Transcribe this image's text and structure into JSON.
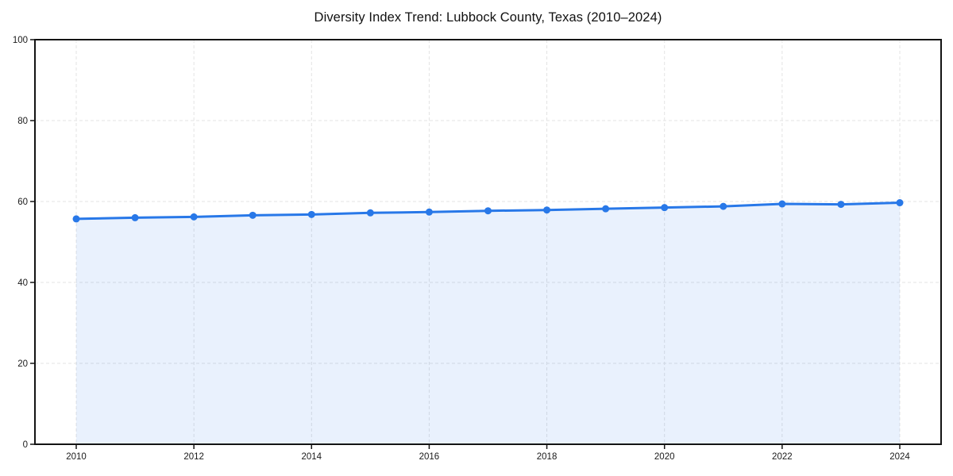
{
  "chart_data": {
    "type": "area",
    "title": "Diversity Index Trend: Lubbock County, Texas (2010–2024)",
    "series_name": "Diversity Index",
    "x": [
      2010,
      2011,
      2012,
      2013,
      2014,
      2015,
      2016,
      2017,
      2018,
      2019,
      2020,
      2021,
      2022,
      2023,
      2024
    ],
    "values": [
      55.7,
      56.0,
      56.2,
      56.6,
      56.8,
      57.2,
      57.4,
      57.7,
      57.9,
      58.2,
      58.5,
      58.8,
      59.4,
      59.3,
      59.7
    ],
    "xlabel": "",
    "ylabel": "",
    "ylim": [
      0,
      100
    ],
    "xticks": [
      2010,
      2012,
      2014,
      2016,
      2018,
      2020,
      2022,
      2024
    ],
    "yticks": [
      0,
      20,
      40,
      60,
      80,
      100
    ],
    "grid": true,
    "grid_style": "dashed",
    "legend_position": "none",
    "line_color": "#2878e8",
    "marker_color": "#2878e8",
    "fill_color": "rgba(40,120,232,0.10)",
    "grid_color": "#e3e3e3",
    "axis_color": "#141414",
    "tick_label_color": "#1a1a1a",
    "title_color": "#111111",
    "background_color": "#ffffff"
  }
}
